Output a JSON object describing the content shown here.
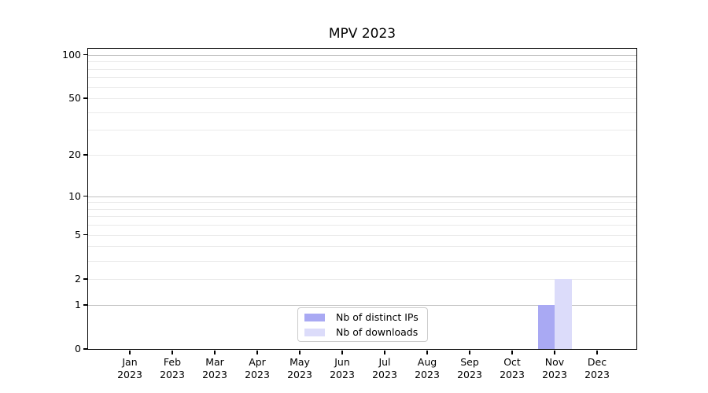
{
  "title": "MPV 2023",
  "chart_data": {
    "type": "bar",
    "title": "MPV 2023",
    "categories": [
      "Jan 2023",
      "Feb 2023",
      "Mar 2023",
      "Apr 2023",
      "May 2023",
      "Jun 2023",
      "Jul 2023",
      "Aug 2023",
      "Sep 2023",
      "Oct 2023",
      "Nov 2023",
      "Dec 2023"
    ],
    "x_tick_months": [
      "Jan",
      "Feb",
      "Mar",
      "Apr",
      "May",
      "Jun",
      "Jul",
      "Aug",
      "Sep",
      "Oct",
      "Nov",
      "Dec"
    ],
    "x_tick_year": "2023",
    "series": [
      {
        "name": "Nb of distinct IPs",
        "color": "#a9a9f3",
        "values": [
          0,
          0,
          0,
          0,
          0,
          0,
          0,
          0,
          0,
          0,
          1,
          0
        ]
      },
      {
        "name": "Nb of downloads",
        "color": "#dcdcfa",
        "values": [
          0,
          0,
          0,
          0,
          0,
          0,
          0,
          0,
          0,
          0,
          2,
          0
        ]
      }
    ],
    "xlabel": "",
    "ylabel": "",
    "yscale": "log10(1+y)",
    "ylim": [
      0,
      110
    ],
    "y_ticks": [
      0,
      1,
      2,
      5,
      10,
      20,
      50,
      100
    ],
    "grid_major": [
      1,
      10,
      100
    ],
    "grid_minor": [
      2,
      3,
      4,
      5,
      6,
      7,
      8,
      9,
      20,
      30,
      40,
      50,
      60,
      70,
      80,
      90
    ],
    "legend_entries": [
      "Nb of distinct IPs",
      "Nb of downloads"
    ],
    "legend_position": "inside-bottom-center-left",
    "colors": {
      "grid_major_color": "#c0c0c0",
      "grid_minor_color": "#eaeaea",
      "spine_color": "#000000",
      "background": "#ffffff",
      "bar_distinct_ips": "#a9a9f3",
      "bar_downloads": "#dcdcfa"
    }
  }
}
